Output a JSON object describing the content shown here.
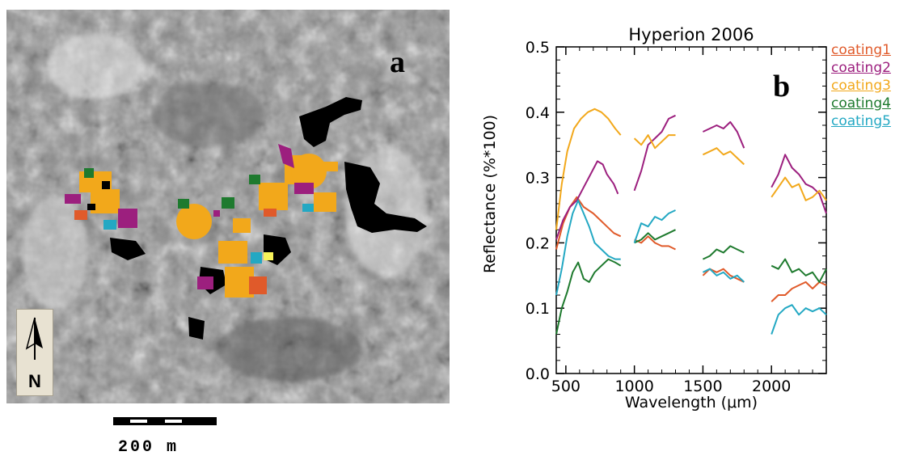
{
  "panel_a": {
    "letter": "a",
    "scale_text": "200 m",
    "north_label": "N"
  },
  "chart_data": {
    "type": "line",
    "title": "Hyperion 2006",
    "panel_letter": "b",
    "xlabel": "Wavelength (μm)",
    "ylabel": "Reflectance (%*100)",
    "xlim": [
      430,
      2400
    ],
    "ylim": [
      0.0,
      0.5
    ],
    "x_ticks": [
      500,
      1000,
      1500,
      2000
    ],
    "y_ticks": [
      "0.0",
      "0.1",
      "0.2",
      "0.3",
      "0.4",
      "0.5"
    ],
    "grid": false,
    "legend_position": "right",
    "series": [
      {
        "name": "coating1",
        "color": "#e05a2a",
        "segments": [
          [
            [
              430,
              0.19
            ],
            [
              480,
              0.23
            ],
            [
              530,
              0.255
            ],
            [
              580,
              0.27
            ],
            [
              630,
              0.255
            ],
            [
              700,
              0.245
            ],
            [
              750,
              0.235
            ],
            [
              800,
              0.225
            ],
            [
              850,
              0.215
            ],
            [
              900,
              0.21
            ]
          ],
          [
            [
              1000,
              0.205
            ],
            [
              1050,
              0.2
            ],
            [
              1100,
              0.21
            ],
            [
              1150,
              0.2
            ],
            [
              1200,
              0.195
            ],
            [
              1250,
              0.195
            ],
            [
              1300,
              0.19
            ]
          ],
          [
            [
              1500,
              0.15
            ],
            [
              1550,
              0.16
            ],
            [
              1600,
              0.155
            ],
            [
              1650,
              0.16
            ],
            [
              1700,
              0.15
            ],
            [
              1750,
              0.145
            ],
            [
              1800,
              0.14
            ]
          ],
          [
            [
              2000,
              0.11
            ],
            [
              2050,
              0.12
            ],
            [
              2100,
              0.12
            ],
            [
              2150,
              0.13
            ],
            [
              2200,
              0.135
            ],
            [
              2250,
              0.14
            ],
            [
              2300,
              0.13
            ],
            [
              2350,
              0.14
            ],
            [
              2400,
              0.135
            ]
          ]
        ]
      },
      {
        "name": "coating2",
        "color": "#9c1f7e",
        "segments": [
          [
            [
              430,
              0.205
            ],
            [
              480,
              0.235
            ],
            [
              530,
              0.255
            ],
            [
              580,
              0.265
            ],
            [
              630,
              0.285
            ],
            [
              680,
              0.305
            ],
            [
              730,
              0.325
            ],
            [
              770,
              0.32
            ],
            [
              800,
              0.305
            ],
            [
              850,
              0.29
            ],
            [
              880,
              0.275
            ]
          ],
          [
            [
              1000,
              0.28
            ],
            [
              1050,
              0.31
            ],
            [
              1100,
              0.35
            ],
            [
              1150,
              0.36
            ],
            [
              1200,
              0.37
            ],
            [
              1250,
              0.39
            ],
            [
              1300,
              0.395
            ]
          ],
          [
            [
              1500,
              0.37
            ],
            [
              1550,
              0.375
            ],
            [
              1600,
              0.38
            ],
            [
              1650,
              0.375
            ],
            [
              1700,
              0.385
            ],
            [
              1750,
              0.37
            ],
            [
              1800,
              0.345
            ]
          ],
          [
            [
              2000,
              0.285
            ],
            [
              2050,
              0.305
            ],
            [
              2100,
              0.335
            ],
            [
              2150,
              0.315
            ],
            [
              2200,
              0.305
            ],
            [
              2250,
              0.29
            ],
            [
              2300,
              0.285
            ],
            [
              2350,
              0.275
            ],
            [
              2400,
              0.245
            ]
          ]
        ]
      },
      {
        "name": "coating3",
        "color": "#f2a81b",
        "segments": [
          [
            [
              430,
              0.22
            ],
            [
              470,
              0.29
            ],
            [
              510,
              0.34
            ],
            [
              560,
              0.375
            ],
            [
              610,
              0.39
            ],
            [
              660,
              0.4
            ],
            [
              710,
              0.405
            ],
            [
              760,
              0.4
            ],
            [
              810,
              0.39
            ],
            [
              860,
              0.375
            ],
            [
              900,
              0.365
            ]
          ],
          [
            [
              1000,
              0.36
            ],
            [
              1050,
              0.35
            ],
            [
              1100,
              0.365
            ],
            [
              1150,
              0.345
            ],
            [
              1200,
              0.355
            ],
            [
              1250,
              0.365
            ],
            [
              1300,
              0.365
            ]
          ],
          [
            [
              1500,
              0.335
            ],
            [
              1550,
              0.34
            ],
            [
              1600,
              0.345
            ],
            [
              1650,
              0.335
            ],
            [
              1700,
              0.34
            ],
            [
              1750,
              0.33
            ],
            [
              1800,
              0.32
            ]
          ],
          [
            [
              2000,
              0.27
            ],
            [
              2050,
              0.285
            ],
            [
              2100,
              0.3
            ],
            [
              2150,
              0.285
            ],
            [
              2200,
              0.29
            ],
            [
              2250,
              0.265
            ],
            [
              2300,
              0.27
            ],
            [
              2350,
              0.28
            ],
            [
              2400,
              0.265
            ]
          ]
        ]
      },
      {
        "name": "coating4",
        "color": "#1e7a2e",
        "segments": [
          [
            [
              430,
              0.06
            ],
            [
              470,
              0.1
            ],
            [
              510,
              0.125
            ],
            [
              550,
              0.155
            ],
            [
              590,
              0.17
            ],
            [
              630,
              0.145
            ],
            [
              670,
              0.14
            ],
            [
              710,
              0.155
            ],
            [
              760,
              0.165
            ],
            [
              810,
              0.175
            ],
            [
              860,
              0.17
            ],
            [
              900,
              0.165
            ]
          ],
          [
            [
              1000,
              0.2
            ],
            [
              1050,
              0.205
            ],
            [
              1100,
              0.215
            ],
            [
              1150,
              0.205
            ],
            [
              1200,
              0.21
            ],
            [
              1250,
              0.215
            ],
            [
              1300,
              0.22
            ]
          ],
          [
            [
              1500,
              0.175
            ],
            [
              1550,
              0.18
            ],
            [
              1600,
              0.19
            ],
            [
              1650,
              0.185
            ],
            [
              1700,
              0.195
            ],
            [
              1750,
              0.19
            ],
            [
              1800,
              0.185
            ]
          ],
          [
            [
              2000,
              0.165
            ],
            [
              2050,
              0.16
            ],
            [
              2100,
              0.175
            ],
            [
              2150,
              0.155
            ],
            [
              2200,
              0.16
            ],
            [
              2250,
              0.15
            ],
            [
              2300,
              0.155
            ],
            [
              2350,
              0.14
            ],
            [
              2400,
              0.16
            ]
          ]
        ]
      },
      {
        "name": "coating5",
        "color": "#23a8c3",
        "segments": [
          [
            [
              430,
              0.12
            ],
            [
              470,
              0.16
            ],
            [
              510,
              0.21
            ],
            [
              550,
              0.245
            ],
            [
              590,
              0.265
            ],
            [
              630,
              0.245
            ],
            [
              670,
              0.225
            ],
            [
              710,
              0.2
            ],
            [
              760,
              0.19
            ],
            [
              810,
              0.18
            ],
            [
              860,
              0.175
            ],
            [
              900,
              0.175
            ]
          ],
          [
            [
              1000,
              0.2
            ],
            [
              1050,
              0.23
            ],
            [
              1100,
              0.225
            ],
            [
              1150,
              0.24
            ],
            [
              1200,
              0.235
            ],
            [
              1250,
              0.245
            ],
            [
              1300,
              0.25
            ]
          ],
          [
            [
              1500,
              0.155
            ],
            [
              1550,
              0.16
            ],
            [
              1600,
              0.15
            ],
            [
              1650,
              0.155
            ],
            [
              1700,
              0.145
            ],
            [
              1750,
              0.15
            ],
            [
              1800,
              0.14
            ]
          ],
          [
            [
              2000,
              0.06
            ],
            [
              2050,
              0.09
            ],
            [
              2100,
              0.1
            ],
            [
              2150,
              0.105
            ],
            [
              2200,
              0.09
            ],
            [
              2250,
              0.1
            ],
            [
              2300,
              0.095
            ],
            [
              2350,
              0.1
            ],
            [
              2400,
              0.09
            ]
          ]
        ]
      }
    ]
  },
  "colors": {
    "background": "#ffffff",
    "axis": "#000000"
  }
}
